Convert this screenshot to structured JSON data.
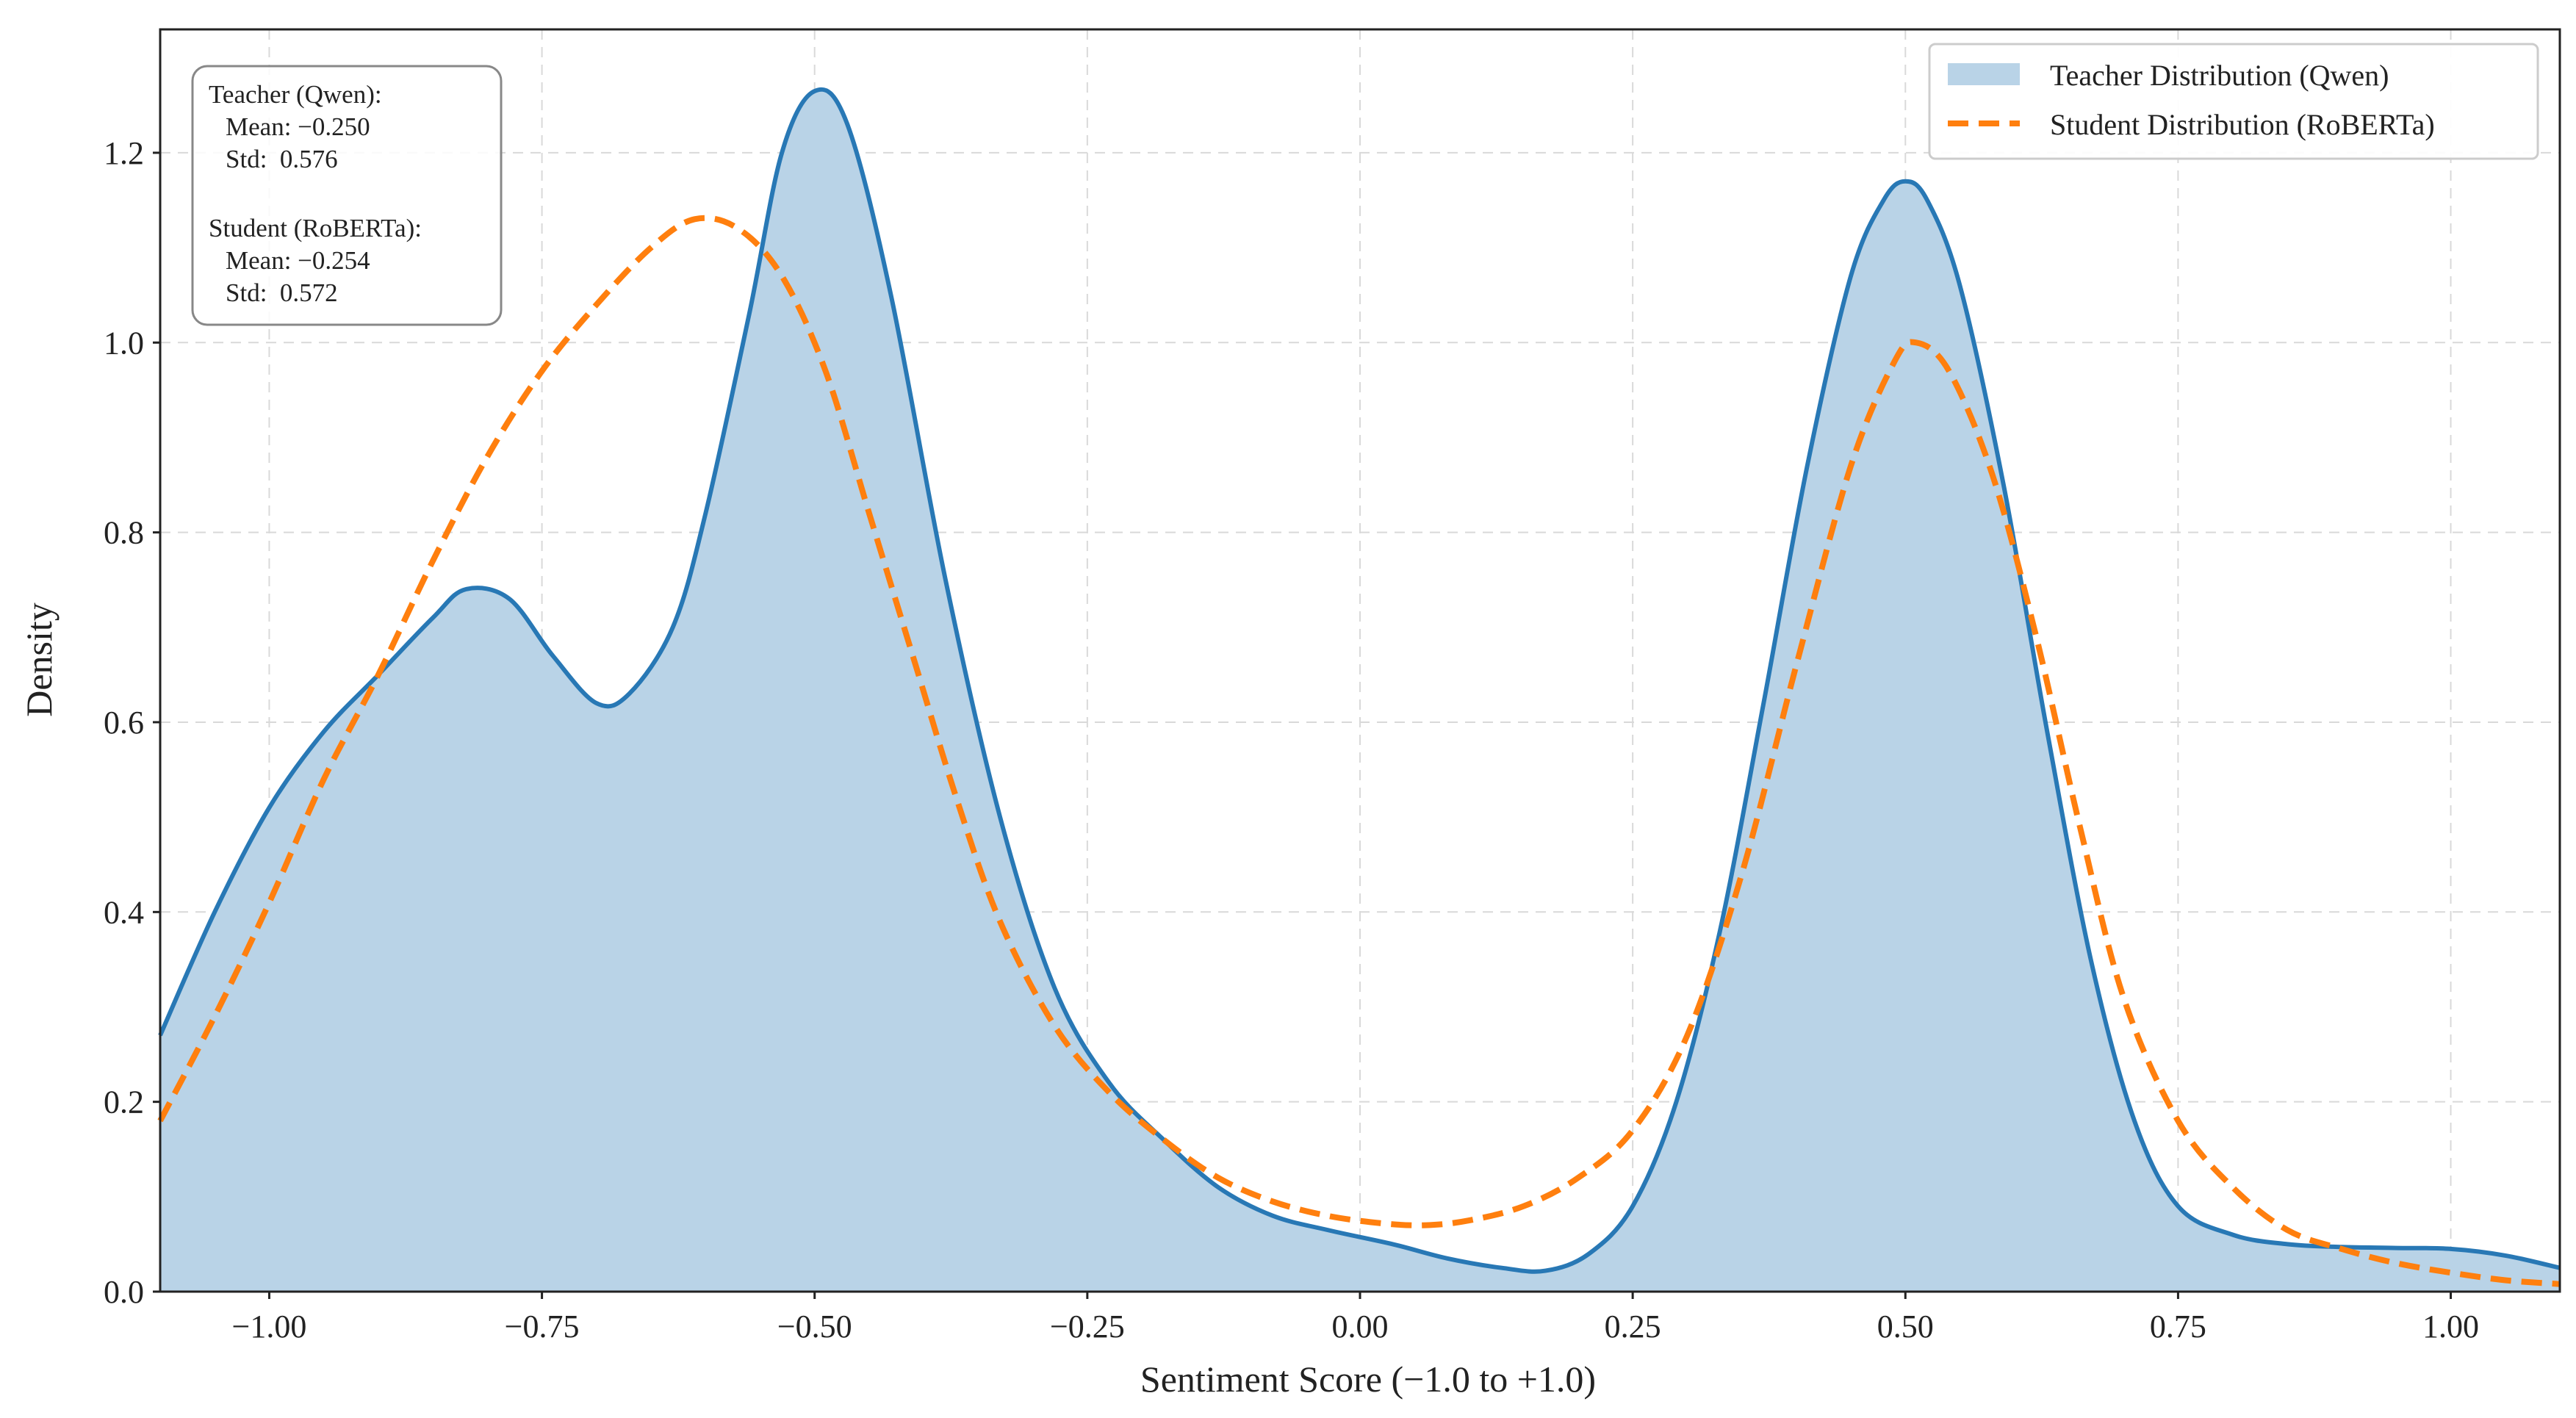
{
  "chart_data": {
    "type": "area",
    "xlabel": "Sentiment Score (−1.0 to +1.0)",
    "ylabel": "Density",
    "xlim": [
      -1.1,
      1.1
    ],
    "ylim": [
      0,
      1.33
    ],
    "x_ticks": [
      -1.0,
      -0.75,
      -0.5,
      -0.25,
      0.0,
      0.25,
      0.5,
      0.75,
      1.0
    ],
    "x_tick_labels": [
      "−1.00",
      "−0.75",
      "−0.50",
      "−0.25",
      "0.00",
      "0.25",
      "0.50",
      "0.75",
      "1.00"
    ],
    "y_ticks": [
      0.0,
      0.2,
      0.4,
      0.6,
      0.8,
      1.0,
      1.2
    ],
    "y_tick_labels": [
      "0.0",
      "0.2",
      "0.4",
      "0.6",
      "0.8",
      "1.0",
      "1.2"
    ],
    "grid": true,
    "legend_position": "top-right",
    "series": [
      {
        "name": "Teacher Distribution (Qwen)",
        "style": "filled area with solid line",
        "line_color": "#2878b5",
        "fill_color": "#b9d3e7",
        "points": [
          [
            -1.1,
            0.27
          ],
          [
            -1.05,
            0.4
          ],
          [
            -1.0,
            0.51
          ],
          [
            -0.95,
            0.59
          ],
          [
            -0.9,
            0.65
          ],
          [
            -0.85,
            0.71
          ],
          [
            -0.82,
            0.74
          ],
          [
            -0.78,
            0.73
          ],
          [
            -0.74,
            0.67
          ],
          [
            -0.7,
            0.62
          ],
          [
            -0.67,
            0.63
          ],
          [
            -0.63,
            0.7
          ],
          [
            -0.6,
            0.82
          ],
          [
            -0.56,
            1.03
          ],
          [
            -0.53,
            1.2
          ],
          [
            -0.5,
            1.265
          ],
          [
            -0.47,
            1.23
          ],
          [
            -0.43,
            1.05
          ],
          [
            -0.38,
            0.75
          ],
          [
            -0.33,
            0.5
          ],
          [
            -0.28,
            0.32
          ],
          [
            -0.23,
            0.22
          ],
          [
            -0.18,
            0.16
          ],
          [
            -0.13,
            0.11
          ],
          [
            -0.08,
            0.08
          ],
          [
            -0.03,
            0.065
          ],
          [
            0.03,
            0.05
          ],
          [
            0.08,
            0.035
          ],
          [
            0.13,
            0.025
          ],
          [
            0.17,
            0.022
          ],
          [
            0.21,
            0.04
          ],
          [
            0.25,
            0.09
          ],
          [
            0.29,
            0.2
          ],
          [
            0.33,
            0.38
          ],
          [
            0.37,
            0.62
          ],
          [
            0.41,
            0.87
          ],
          [
            0.45,
            1.07
          ],
          [
            0.48,
            1.15
          ],
          [
            0.5,
            1.17
          ],
          [
            0.52,
            1.15
          ],
          [
            0.55,
            1.06
          ],
          [
            0.59,
            0.85
          ],
          [
            0.63,
            0.59
          ],
          [
            0.67,
            0.35
          ],
          [
            0.71,
            0.18
          ],
          [
            0.75,
            0.09
          ],
          [
            0.8,
            0.06
          ],
          [
            0.85,
            0.05
          ],
          [
            0.9,
            0.047
          ],
          [
            0.95,
            0.046
          ],
          [
            1.0,
            0.045
          ],
          [
            1.05,
            0.038
          ],
          [
            1.1,
            0.025
          ]
        ]
      },
      {
        "name": "Student Distribution (RoBERTa)",
        "style": "dashed line",
        "line_color": "#ff7f0e",
        "points": [
          [
            -1.1,
            0.18
          ],
          [
            -1.05,
            0.29
          ],
          [
            -1.0,
            0.41
          ],
          [
            -0.95,
            0.54
          ],
          [
            -0.9,
            0.65
          ],
          [
            -0.85,
            0.77
          ],
          [
            -0.8,
            0.88
          ],
          [
            -0.75,
            0.97
          ],
          [
            -0.7,
            1.04
          ],
          [
            -0.65,
            1.1
          ],
          [
            -0.61,
            1.13
          ],
          [
            -0.57,
            1.12
          ],
          [
            -0.53,
            1.07
          ],
          [
            -0.49,
            0.97
          ],
          [
            -0.45,
            0.82
          ],
          [
            -0.41,
            0.67
          ],
          [
            -0.37,
            0.52
          ],
          [
            -0.33,
            0.39
          ],
          [
            -0.28,
            0.28
          ],
          [
            -0.23,
            0.21
          ],
          [
            -0.18,
            0.16
          ],
          [
            -0.13,
            0.12
          ],
          [
            -0.08,
            0.095
          ],
          [
            -0.03,
            0.08
          ],
          [
            0.02,
            0.072
          ],
          [
            0.06,
            0.07
          ],
          [
            0.1,
            0.075
          ],
          [
            0.15,
            0.09
          ],
          [
            0.2,
            0.12
          ],
          [
            0.25,
            0.17
          ],
          [
            0.3,
            0.27
          ],
          [
            0.35,
            0.44
          ],
          [
            0.4,
            0.66
          ],
          [
            0.45,
            0.87
          ],
          [
            0.49,
            0.98
          ],
          [
            0.51,
            1.0
          ],
          [
            0.54,
            0.97
          ],
          [
            0.58,
            0.86
          ],
          [
            0.62,
            0.69
          ],
          [
            0.66,
            0.49
          ],
          [
            0.7,
            0.31
          ],
          [
            0.75,
            0.18
          ],
          [
            0.8,
            0.11
          ],
          [
            0.85,
            0.065
          ],
          [
            0.9,
            0.045
          ],
          [
            0.95,
            0.03
          ],
          [
            1.0,
            0.02
          ],
          [
            1.05,
            0.012
          ],
          [
            1.1,
            0.008
          ]
        ]
      }
    ],
    "legend": [
      {
        "label": "Teacher Distribution (Qwen)",
        "swatch": "fill"
      },
      {
        "label": "Student Distribution (RoBERTa)",
        "swatch": "dash"
      }
    ],
    "stats_box": {
      "teacher_title": "Teacher (Qwen):",
      "teacher_mean": "Mean: −0.250",
      "teacher_std": "Std:  0.576",
      "student_title": "Student (RoBERTa):",
      "student_mean": "Mean: −0.254",
      "student_std": "Std:  0.572"
    }
  }
}
